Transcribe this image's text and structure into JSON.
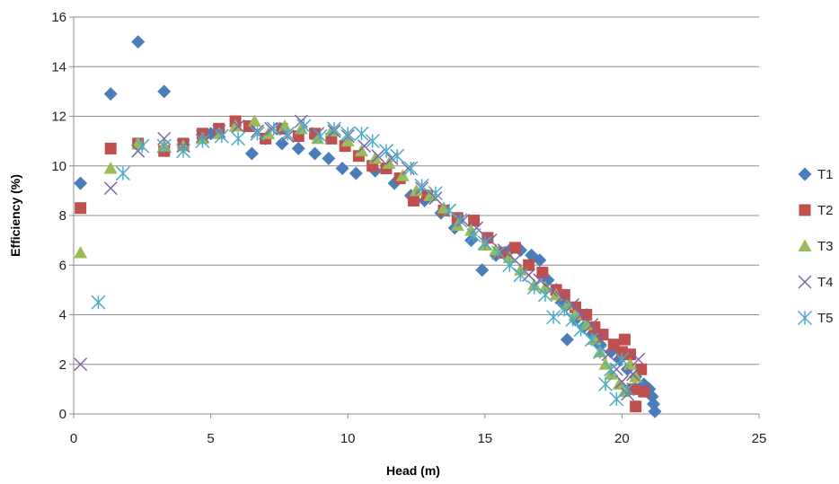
{
  "chart_data": {
    "type": "scatter",
    "title": "",
    "xlabel": "Head (m)",
    "ylabel": "Efficiency  (%)",
    "xlim": [
      0,
      25
    ],
    "ylim": [
      0,
      16
    ],
    "x_ticks": [
      "0",
      "5",
      "10",
      "15",
      "20",
      "25"
    ],
    "y_ticks": [
      "0",
      "2",
      "4",
      "6",
      "8",
      "10",
      "12",
      "14",
      "16"
    ],
    "grid": "horizontal",
    "legend_position": "right",
    "series": [
      {
        "name": "T1",
        "marker": "diamond",
        "color": "#4a7ebb",
        "points": [
          [
            0.25,
            9.3
          ],
          [
            1.35,
            12.9
          ],
          [
            2.35,
            15.0
          ],
          [
            3.3,
            13.0
          ],
          [
            5.0,
            11.3
          ],
          [
            6.5,
            10.5
          ],
          [
            7.0,
            11.1
          ],
          [
            7.6,
            10.9
          ],
          [
            8.2,
            10.7
          ],
          [
            8.8,
            10.5
          ],
          [
            9.3,
            10.3
          ],
          [
            9.8,
            9.9
          ],
          [
            10.3,
            9.7
          ],
          [
            11.0,
            9.8
          ],
          [
            11.7,
            9.3
          ],
          [
            12.3,
            8.8
          ],
          [
            12.8,
            8.6
          ],
          [
            13.4,
            8.1
          ],
          [
            13.9,
            7.5
          ],
          [
            14.5,
            7.0
          ],
          [
            14.9,
            5.8
          ],
          [
            15.4,
            6.4
          ],
          [
            15.9,
            6.6
          ],
          [
            16.3,
            6.6
          ],
          [
            16.7,
            6.4
          ],
          [
            17.0,
            6.2
          ],
          [
            17.3,
            5.4
          ],
          [
            17.6,
            5.0
          ],
          [
            17.8,
            4.5
          ],
          [
            18.0,
            3.0
          ],
          [
            18.3,
            3.8
          ],
          [
            18.6,
            3.5
          ],
          [
            18.9,
            3.2
          ],
          [
            19.2,
            2.8
          ],
          [
            19.6,
            2.5
          ],
          [
            19.9,
            2.2
          ],
          [
            20.2,
            1.8
          ],
          [
            20.5,
            1.5
          ],
          [
            20.8,
            1.2
          ],
          [
            21.0,
            1.0
          ],
          [
            21.1,
            0.7
          ],
          [
            21.15,
            0.4
          ],
          [
            21.2,
            0.1
          ]
        ]
      },
      {
        "name": "T2",
        "marker": "square",
        "color": "#c0504d",
        "points": [
          [
            0.25,
            8.3
          ],
          [
            1.35,
            10.7
          ],
          [
            2.35,
            10.9
          ],
          [
            3.3,
            10.6
          ],
          [
            4.0,
            10.9
          ],
          [
            4.7,
            11.3
          ],
          [
            5.3,
            11.5
          ],
          [
            5.9,
            11.8
          ],
          [
            6.4,
            11.6
          ],
          [
            7.0,
            11.1
          ],
          [
            7.6,
            11.5
          ],
          [
            8.2,
            11.2
          ],
          [
            8.8,
            11.3
          ],
          [
            9.4,
            11.1
          ],
          [
            9.9,
            10.8
          ],
          [
            10.4,
            10.4
          ],
          [
            10.9,
            10.0
          ],
          [
            11.4,
            9.9
          ],
          [
            11.9,
            9.5
          ],
          [
            12.4,
            8.6
          ],
          [
            12.9,
            8.8
          ],
          [
            13.5,
            8.2
          ],
          [
            14.0,
            7.9
          ],
          [
            14.6,
            7.8
          ],
          [
            15.1,
            7.1
          ],
          [
            15.6,
            6.5
          ],
          [
            16.1,
            6.7
          ],
          [
            16.6,
            6.0
          ],
          [
            17.1,
            5.7
          ],
          [
            17.6,
            5.0
          ],
          [
            17.9,
            4.8
          ],
          [
            18.3,
            4.3
          ],
          [
            18.7,
            4.0
          ],
          [
            19.0,
            3.5
          ],
          [
            19.3,
            3.2
          ],
          [
            19.7,
            2.8
          ],
          [
            20.0,
            2.5
          ],
          [
            20.1,
            3.0
          ],
          [
            20.3,
            2.4
          ],
          [
            20.4,
            1.0
          ],
          [
            20.5,
            0.3
          ],
          [
            20.7,
            1.8
          ],
          [
            20.8,
            0.9
          ]
        ]
      },
      {
        "name": "T3",
        "marker": "triangle",
        "color": "#9bbb59",
        "points": [
          [
            0.25,
            6.5
          ],
          [
            1.35,
            9.9
          ],
          [
            2.35,
            10.9
          ],
          [
            3.3,
            10.8
          ],
          [
            4.0,
            10.8
          ],
          [
            4.7,
            11.1
          ],
          [
            5.3,
            11.3
          ],
          [
            5.9,
            11.6
          ],
          [
            6.6,
            11.8
          ],
          [
            7.1,
            11.3
          ],
          [
            7.7,
            11.6
          ],
          [
            8.3,
            11.5
          ],
          [
            8.9,
            11.1
          ],
          [
            9.4,
            11.4
          ],
          [
            10.0,
            11.0
          ],
          [
            10.5,
            10.6
          ],
          [
            11.0,
            10.3
          ],
          [
            11.5,
            10.1
          ],
          [
            12.0,
            9.6
          ],
          [
            12.5,
            9.0
          ],
          [
            13.0,
            8.8
          ],
          [
            13.5,
            8.3
          ],
          [
            14.0,
            7.6
          ],
          [
            14.5,
            7.4
          ],
          [
            15.0,
            6.8
          ],
          [
            15.4,
            6.6
          ],
          [
            15.9,
            6.3
          ],
          [
            16.3,
            5.8
          ],
          [
            16.8,
            5.2
          ],
          [
            17.2,
            5.1
          ],
          [
            17.6,
            4.8
          ],
          [
            18.0,
            4.4
          ],
          [
            18.3,
            4.0
          ],
          [
            18.7,
            3.6
          ],
          [
            19.0,
            3.0
          ],
          [
            19.2,
            2.5
          ],
          [
            19.4,
            2.0
          ],
          [
            19.6,
            1.6
          ],
          [
            19.9,
            1.2
          ],
          [
            20.1,
            0.9
          ],
          [
            20.3,
            2.0
          ],
          [
            20.5,
            1.5
          ]
        ]
      },
      {
        "name": "T4",
        "marker": "x",
        "color": "#8064a2",
        "points": [
          [
            0.25,
            2.0
          ],
          [
            1.35,
            9.1
          ],
          [
            2.35,
            10.6
          ],
          [
            3.3,
            11.1
          ],
          [
            4.0,
            10.8
          ],
          [
            4.7,
            11.2
          ],
          [
            5.3,
            11.4
          ],
          [
            6.0,
            11.6
          ],
          [
            6.7,
            11.4
          ],
          [
            7.2,
            11.5
          ],
          [
            7.8,
            11.2
          ],
          [
            8.3,
            11.8
          ],
          [
            8.9,
            11.3
          ],
          [
            9.5,
            11.4
          ],
          [
            10.0,
            11.2
          ],
          [
            10.6,
            10.8
          ],
          [
            11.1,
            10.4
          ],
          [
            11.6,
            10.3
          ],
          [
            12.2,
            9.9
          ],
          [
            12.7,
            9.1
          ],
          [
            13.2,
            8.7
          ],
          [
            13.7,
            8.2
          ],
          [
            14.2,
            7.8
          ],
          [
            14.7,
            7.5
          ],
          [
            15.2,
            7.0
          ],
          [
            15.7,
            6.6
          ],
          [
            16.1,
            6.2
          ],
          [
            16.6,
            5.6
          ],
          [
            17.0,
            5.4
          ],
          [
            17.4,
            5.0
          ],
          [
            17.8,
            4.7
          ],
          [
            18.2,
            4.4
          ],
          [
            18.5,
            4.0
          ],
          [
            18.9,
            3.6
          ],
          [
            19.2,
            3.0
          ],
          [
            19.5,
            2.4
          ],
          [
            19.8,
            1.8
          ],
          [
            20.0,
            1.3
          ],
          [
            20.2,
            0.8
          ],
          [
            20.4,
            1.6
          ],
          [
            20.6,
            2.2
          ]
        ]
      },
      {
        "name": "T5",
        "marker": "star",
        "color": "#4bacc6",
        "points": [
          [
            0.9,
            4.5
          ],
          [
            1.8,
            9.7
          ],
          [
            2.5,
            10.8
          ],
          [
            3.3,
            10.8
          ],
          [
            4.0,
            10.6
          ],
          [
            4.7,
            11.0
          ],
          [
            5.4,
            11.2
          ],
          [
            6.0,
            11.1
          ],
          [
            6.7,
            11.3
          ],
          [
            7.3,
            11.5
          ],
          [
            7.8,
            11.3
          ],
          [
            8.4,
            11.6
          ],
          [
            9.0,
            11.2
          ],
          [
            9.5,
            11.5
          ],
          [
            10.0,
            11.3
          ],
          [
            10.5,
            11.3
          ],
          [
            10.9,
            11.0
          ],
          [
            11.4,
            10.6
          ],
          [
            11.8,
            10.4
          ],
          [
            12.3,
            9.9
          ],
          [
            12.7,
            9.2
          ],
          [
            13.2,
            8.9
          ],
          [
            13.7,
            8.2
          ],
          [
            14.1,
            7.8
          ],
          [
            14.6,
            7.2
          ],
          [
            15.0,
            6.9
          ],
          [
            15.5,
            6.5
          ],
          [
            15.9,
            6.0
          ],
          [
            16.3,
            5.6
          ],
          [
            16.8,
            5.1
          ],
          [
            17.2,
            4.8
          ],
          [
            17.5,
            3.9
          ],
          [
            17.9,
            4.2
          ],
          [
            18.2,
            3.8
          ],
          [
            18.5,
            3.4
          ],
          [
            18.9,
            3.0
          ],
          [
            19.2,
            2.5
          ],
          [
            19.4,
            1.2
          ],
          [
            19.6,
            1.8
          ],
          [
            19.8,
            0.6
          ],
          [
            20.0,
            2.2
          ],
          [
            20.2,
            1.0
          ]
        ]
      }
    ]
  }
}
